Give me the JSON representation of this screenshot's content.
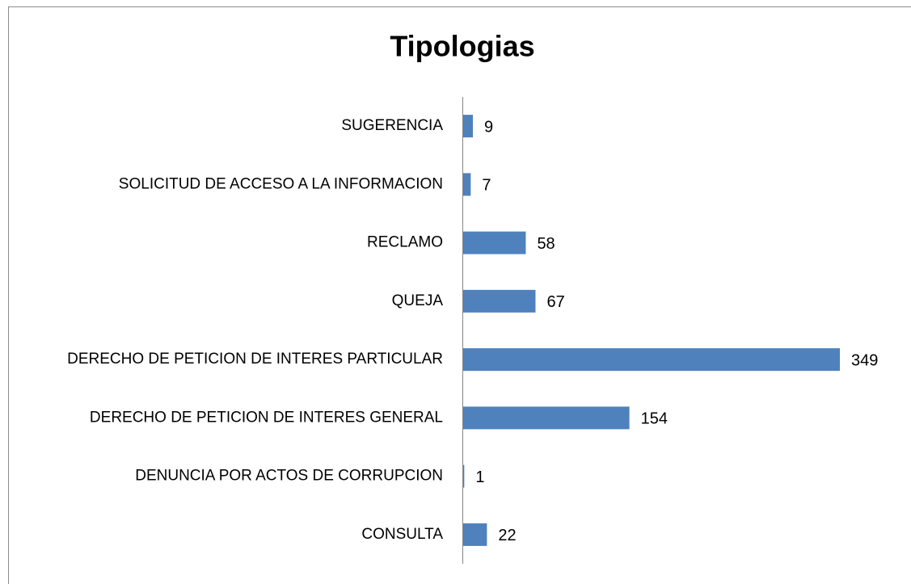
{
  "chart_data": {
    "type": "bar",
    "orientation": "horizontal",
    "title": "Tipologias",
    "categories": [
      "SUGERENCIA",
      "SOLICITUD DE ACCESO A LA INFORMACION",
      "RECLAMO",
      "QUEJA",
      "DERECHO DE PETICION DE INTERES PARTICULAR",
      "DERECHO DE PETICION DE INTERES GENERAL",
      "DENUNCIA POR ACTOS DE CORRUPCION",
      "CONSULTA"
    ],
    "values": [
      9,
      7,
      58,
      67,
      349,
      154,
      1,
      22
    ],
    "color": "#4f81bd"
  }
}
